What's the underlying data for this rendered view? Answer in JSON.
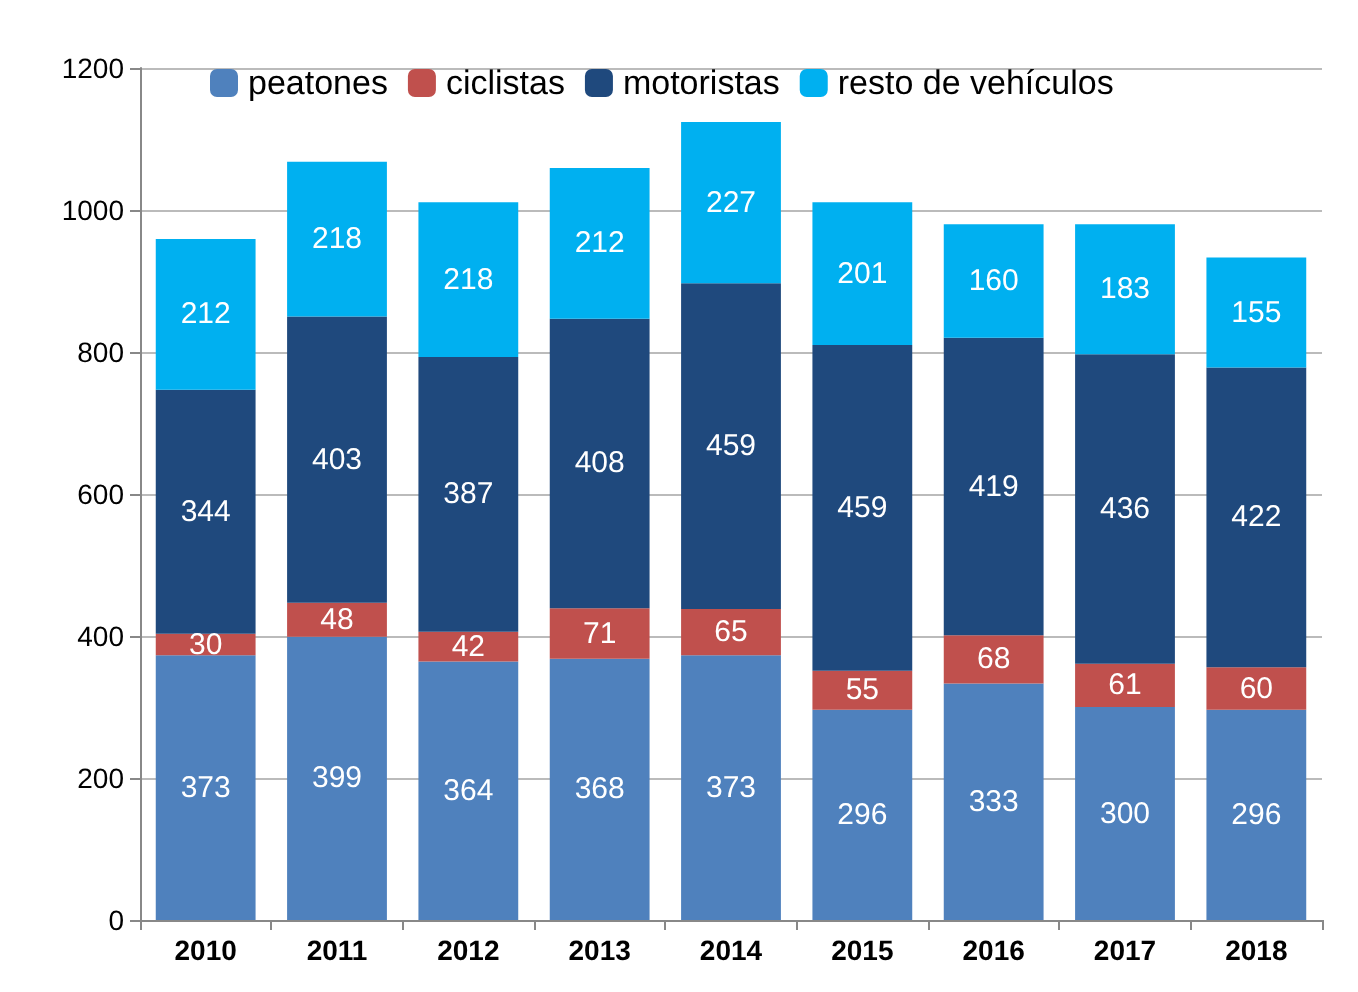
{
  "chart_data": {
    "type": "bar",
    "stacked": true,
    "categories": [
      "2010",
      "2011",
      "2012",
      "2013",
      "2014",
      "2015",
      "2016",
      "2017",
      "2018"
    ],
    "series": [
      {
        "name": "peatones",
        "color": "#4f81bd",
        "values": [
          373,
          399,
          364,
          368,
          373,
          296,
          333,
          300,
          296
        ]
      },
      {
        "name": "ciclistas",
        "color": "#c0504d",
        "values": [
          30,
          48,
          42,
          71,
          65,
          55,
          68,
          61,
          60
        ]
      },
      {
        "name": "motoristas",
        "color": "#1f497d",
        "values": [
          344,
          403,
          387,
          408,
          459,
          459,
          419,
          436,
          422
        ]
      },
      {
        "name": "resto de vehículos",
        "color": "#00b0f0",
        "values": [
          212,
          218,
          218,
          212,
          227,
          201,
          160,
          183,
          155
        ]
      }
    ],
    "ylim": [
      0,
      1200
    ],
    "yticks": [
      0,
      200,
      400,
      600,
      800,
      1000,
      1200
    ],
    "grid": "y",
    "legend": "top",
    "data_labels": true
  }
}
